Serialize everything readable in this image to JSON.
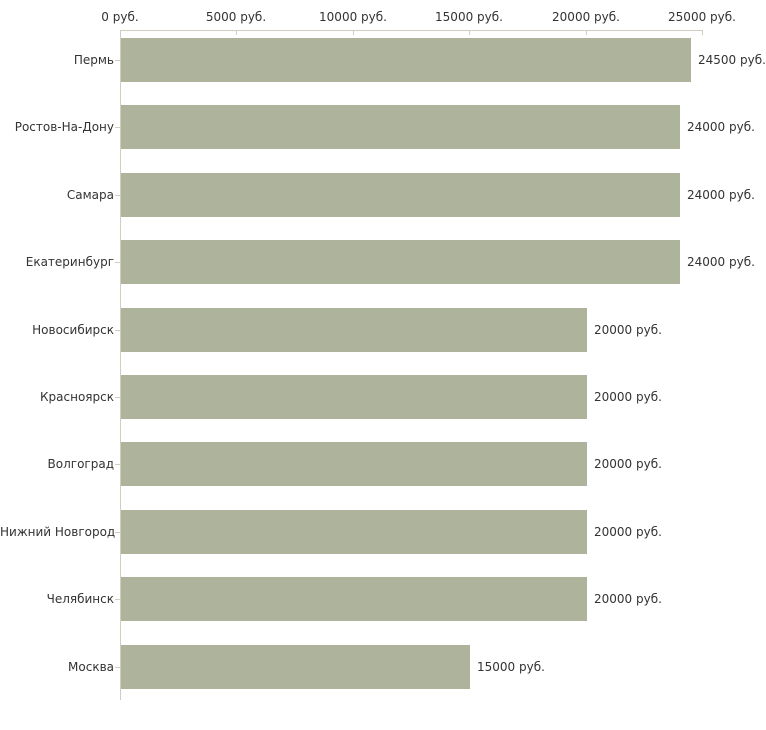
{
  "chart_data": {
    "type": "bar",
    "orientation": "horizontal",
    "title": "",
    "xlabel": "",
    "ylabel": "",
    "categories": [
      "Пермь",
      "Ростов-На-Дону",
      "Самара",
      "Екатеринбург",
      "Новосибирск",
      "Красноярск",
      "Волгоград",
      "Нижний Новгород",
      "Челябинск",
      "Москва"
    ],
    "values": [
      24500,
      24000,
      24000,
      24000,
      20000,
      20000,
      20000,
      20000,
      20000,
      15000
    ],
    "value_labels": [
      "24500 руб.",
      "24000 руб.",
      "24000 руб.",
      "24000 руб.",
      "20000 руб.",
      "20000 руб.",
      "20000 руб.",
      "20000 руб.",
      "20000 руб.",
      "15000 руб."
    ],
    "x_axis": {
      "position": "top",
      "range": [
        0,
        25000
      ],
      "ticks": [
        0,
        5000,
        10000,
        15000,
        20000,
        25000
      ],
      "tick_labels": [
        "0 руб.",
        "5000 руб.",
        "10000 руб.",
        "15000 руб.",
        "20000 руб.",
        "25000 руб."
      ]
    },
    "grid": false,
    "legend": false,
    "colors": {
      "bar": "#aeb49c",
      "axis": "#d1cec0",
      "text": "#333333",
      "background": "#ffffff"
    }
  }
}
